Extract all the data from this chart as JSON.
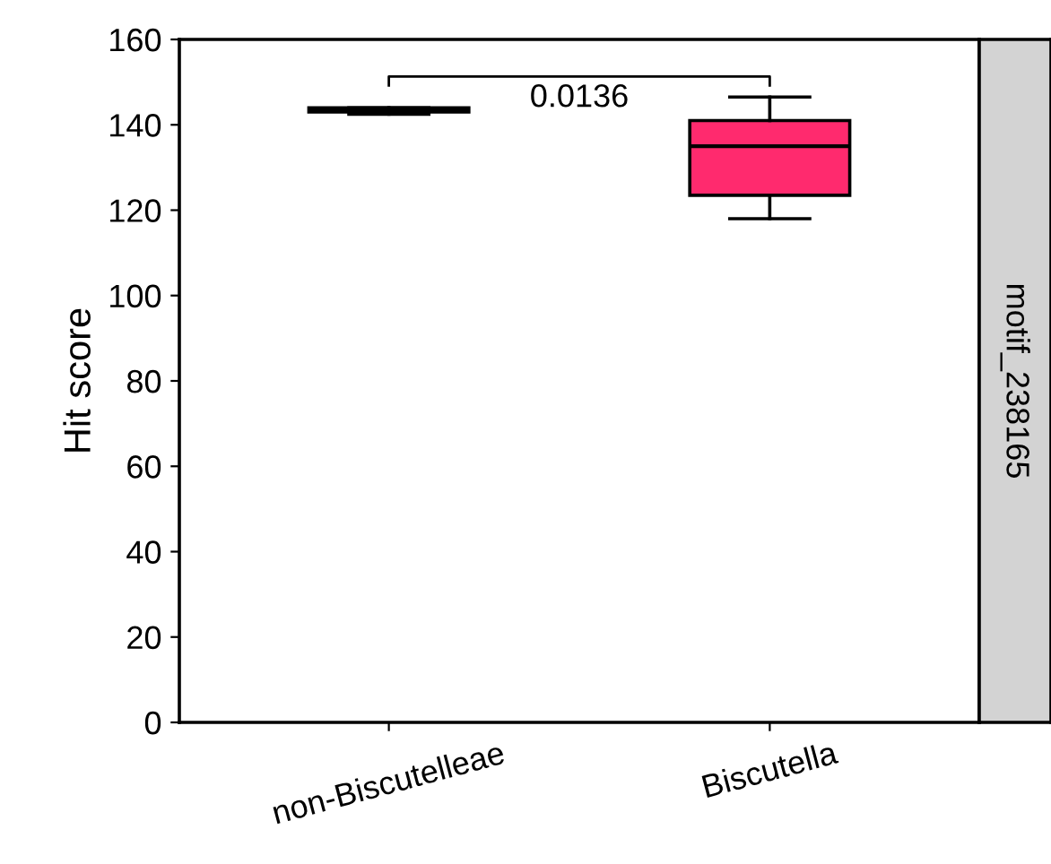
{
  "chart_data": {
    "type": "box",
    "ylabel": "Hit score",
    "categories": [
      "non-Biscutelleae",
      "Biscutella"
    ],
    "series": [
      {
        "color": "#000000",
        "boxes": [
          {
            "low": 142.5,
            "q1": 143,
            "median": 143.5,
            "q3": 144,
            "high": 144
          },
          null
        ]
      },
      {
        "color": "#ff2a6e",
        "boxes": [
          null,
          {
            "low": 118,
            "q1": 123.5,
            "median": 135,
            "q3": 141,
            "high": 146.5
          }
        ]
      }
    ],
    "ylim": [
      0,
      160
    ],
    "yticks": [
      0,
      20,
      40,
      60,
      80,
      100,
      120,
      140,
      160
    ],
    "grid": false,
    "legend": false,
    "annotations": [
      "0.0136",
      "motif_238165"
    ]
  }
}
